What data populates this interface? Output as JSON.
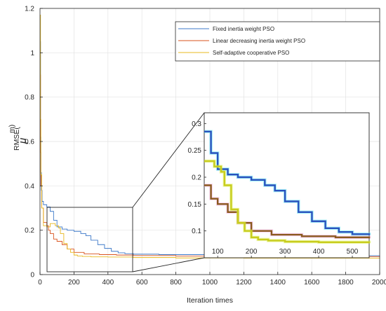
{
  "chart_data": {
    "type": "line",
    "xlabel": "Iteration times",
    "ylabel": "RMSE(",
    "ylabel_unit_glyph": "μ",
    "ylabel_unit_suffix": "m)",
    "xlim": [
      0,
      2000
    ],
    "ylim": [
      0,
      1.2
    ],
    "x_ticks": [
      "0",
      "200",
      "400",
      "600",
      "800",
      "1000",
      "1200",
      "1400",
      "1600",
      "1800",
      "2000"
    ],
    "y_ticks": [
      "0",
      "0.2",
      "0.4",
      "0.6",
      "0.8",
      "1",
      "1.2"
    ],
    "grid": true,
    "legend_position": "top-right",
    "series": [
      {
        "name": "Fixed inertia weight PSO",
        "color": "#3c78c8",
        "points": [
          [
            1,
            1.05
          ],
          [
            3,
            0.62
          ],
          [
            5,
            0.46
          ],
          [
            8,
            0.38
          ],
          [
            12,
            0.33
          ],
          [
            20,
            0.315
          ],
          [
            40,
            0.305
          ],
          [
            60,
            0.285
          ],
          [
            80,
            0.245
          ],
          [
            100,
            0.215
          ],
          [
            130,
            0.205
          ],
          [
            160,
            0.2
          ],
          [
            200,
            0.195
          ],
          [
            240,
            0.185
          ],
          [
            270,
            0.175
          ],
          [
            300,
            0.155
          ],
          [
            340,
            0.135
          ],
          [
            380,
            0.118
          ],
          [
            420,
            0.105
          ],
          [
            460,
            0.098
          ],
          [
            500,
            0.094
          ],
          [
            550,
            0.092
          ],
          [
            700,
            0.09
          ],
          [
            1000,
            0.087
          ],
          [
            1400,
            0.085
          ],
          [
            2000,
            0.083
          ]
        ]
      },
      {
        "name": "Linear decreasing inertia weight PSO",
        "color": "#d9531e",
        "points": [
          [
            1,
            0.9
          ],
          [
            3,
            0.55
          ],
          [
            5,
            0.4
          ],
          [
            10,
            0.3
          ],
          [
            20,
            0.235
          ],
          [
            40,
            0.22
          ],
          [
            50,
            0.2
          ],
          [
            60,
            0.185
          ],
          [
            80,
            0.16
          ],
          [
            100,
            0.15
          ],
          [
            130,
            0.135
          ],
          [
            160,
            0.115
          ],
          [
            200,
            0.1
          ],
          [
            260,
            0.093
          ],
          [
            350,
            0.09
          ],
          [
            450,
            0.088
          ],
          [
            550,
            0.086
          ],
          [
            800,
            0.083
          ],
          [
            1200,
            0.081
          ],
          [
            2000,
            0.079
          ]
        ]
      },
      {
        "name": "Self-adaptive cooperative PSO",
        "color": "#e8b81f",
        "points": [
          [
            1,
            1.17
          ],
          [
            3,
            0.7
          ],
          [
            5,
            0.45
          ],
          [
            10,
            0.3
          ],
          [
            20,
            0.22
          ],
          [
            40,
            0.215
          ],
          [
            60,
            0.23
          ],
          [
            90,
            0.22
          ],
          [
            110,
            0.21
          ],
          [
            120,
            0.185
          ],
          [
            140,
            0.14
          ],
          [
            160,
            0.115
          ],
          [
            180,
            0.1
          ],
          [
            200,
            0.088
          ],
          [
            220,
            0.084
          ],
          [
            250,
            0.082
          ],
          [
            300,
            0.08
          ],
          [
            400,
            0.079
          ],
          [
            550,
            0.077
          ],
          [
            800,
            0.075
          ],
          [
            1200,
            0.074
          ],
          [
            2000,
            0.073
          ]
        ]
      }
    ],
    "inset": {
      "xlim": [
        60,
        550
      ],
      "ylim": [
        0.05,
        0.32
      ],
      "x_ticks": [
        "100",
        "200",
        "300",
        "400",
        "500"
      ],
      "y_ticks": [
        "0.1",
        "0.15",
        "0.2",
        "0.25",
        "0.3"
      ],
      "series_colors": [
        "#2a52be",
        "#8a5a1e",
        "#c8cc1e"
      ],
      "series_glow": [
        "#40e0f0",
        "#f0a0e0",
        "#d8f040"
      ]
    }
  }
}
